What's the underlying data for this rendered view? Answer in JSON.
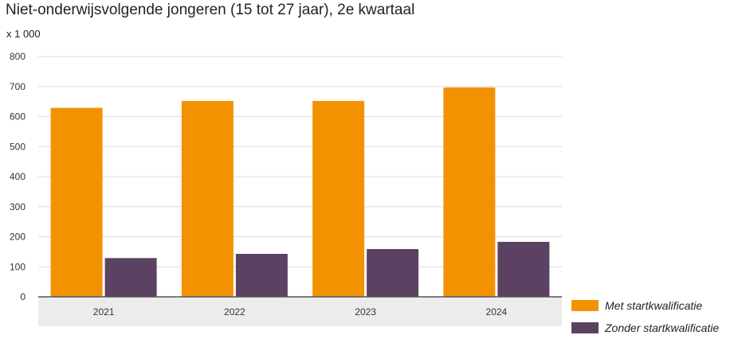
{
  "chart_data": {
    "type": "bar",
    "title": "Niet-onderwijsvolgende jongeren (15 tot 27 jaar), 2e kwartaal",
    "unit_label": "x 1 000",
    "categories": [
      "2021",
      "2022",
      "2023",
      "2024"
    ],
    "series": [
      {
        "name": "Met startkwalificatie",
        "values": [
          629,
          652,
          652,
          697
        ],
        "color": "#f39200"
      },
      {
        "name": "Zonder startkwalificatie",
        "values": [
          129,
          143,
          159,
          183
        ],
        "color": "#5b4262"
      }
    ],
    "ylim": [
      0,
      800
    ],
    "yticks": [
      0,
      100,
      200,
      300,
      400,
      500,
      600,
      700,
      800
    ],
    "grid": true,
    "legend_position": "bottom-right",
    "axis_band_color": "#ececec",
    "xlabel": "",
    "ylabel": ""
  }
}
